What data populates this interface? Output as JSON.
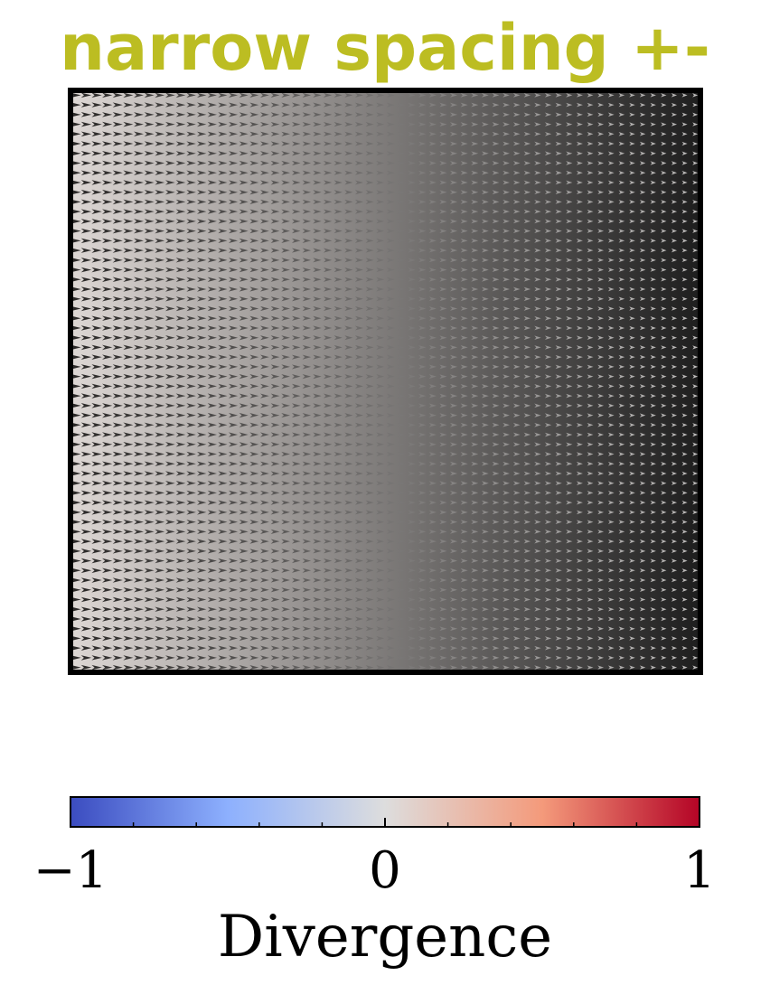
{
  "chart_data": {
    "type": "quiver",
    "title": "narrow spacing +-",
    "title_color": "#bcbd22",
    "grid": false,
    "field": {
      "x_samples": 60,
      "y_samples": 60,
      "vector_direction": "+x",
      "magnitude_trend": "arrows longest at left edge, shrinking toward right edge",
      "background_gradient": [
        "#ddd7d4",
        "#1e1e1e"
      ]
    },
    "colorbar": {
      "label": "Divergence",
      "range": [
        -1,
        1
      ],
      "ticks": [
        -1,
        0,
        1
      ],
      "tick_labels": [
        "−1",
        "0",
        "1"
      ],
      "minor_tick_step": 0.2,
      "colormap": "coolwarm",
      "colormap_stops": [
        "#3b4cc0",
        "#8db0fe",
        "#dddddd",
        "#f49a7b",
        "#b40426"
      ],
      "orientation": "horizontal",
      "placement": "bottom"
    }
  }
}
